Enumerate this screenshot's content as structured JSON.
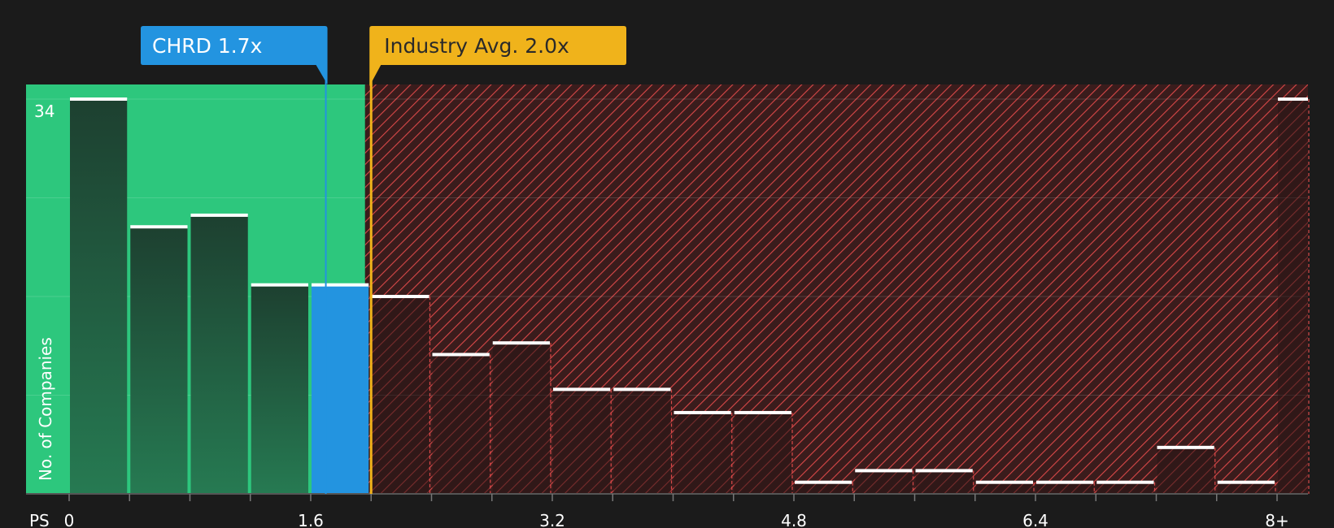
{
  "chart_data": {
    "type": "bar",
    "ylabel": "No. of Companies",
    "xlabel": "PS",
    "x_tick_labels": [
      "0",
      "1.6",
      "3.2",
      "4.8",
      "6.4",
      "8+"
    ],
    "x_ticks": [
      0,
      1.6,
      3.2,
      4.8,
      6.4,
      8
    ],
    "xlim": [
      0,
      8.0
    ],
    "y_max_label": "34",
    "ylim": [
      0,
      35
    ],
    "bin_width": 0.4,
    "bins": [
      {
        "x": 0.0,
        "value": 34
      },
      {
        "x": 0.4,
        "value": 23
      },
      {
        "x": 0.8,
        "value": 24
      },
      {
        "x": 1.2,
        "value": 18
      },
      {
        "x": 1.6,
        "value": 18,
        "highlight": true
      },
      {
        "x": 2.0,
        "value": 17
      },
      {
        "x": 2.4,
        "value": 12
      },
      {
        "x": 2.8,
        "value": 13
      },
      {
        "x": 3.2,
        "value": 9
      },
      {
        "x": 3.6,
        "value": 9
      },
      {
        "x": 4.0,
        "value": 7
      },
      {
        "x": 4.4,
        "value": 7
      },
      {
        "x": 4.8,
        "value": 1
      },
      {
        "x": 5.2,
        "value": 2
      },
      {
        "x": 5.6,
        "value": 2
      },
      {
        "x": 6.0,
        "value": 1
      },
      {
        "x": 6.4,
        "value": 1
      },
      {
        "x": 6.8,
        "value": 1
      },
      {
        "x": 7.2,
        "value": 4
      },
      {
        "x": 7.6,
        "value": 1
      },
      {
        "x": 8.0,
        "value": 34
      }
    ],
    "company": {
      "label": "CHRD 1.7x",
      "value": 1.7
    },
    "industry": {
      "label": "Industry Avg. 2.0x",
      "value": 2.0
    },
    "good_zone_end": 1.96,
    "colors": {
      "background": "#1b1b1b",
      "good_zone": "#2dc77d",
      "bad_zone": "#7a2121",
      "hatch": "#d94848",
      "bar_dark": "#1f4433",
      "bar_highlight": "#2394e0",
      "company": "#2394e0",
      "industry": "#f0b31b",
      "bar_top": "#ffffff"
    }
  }
}
